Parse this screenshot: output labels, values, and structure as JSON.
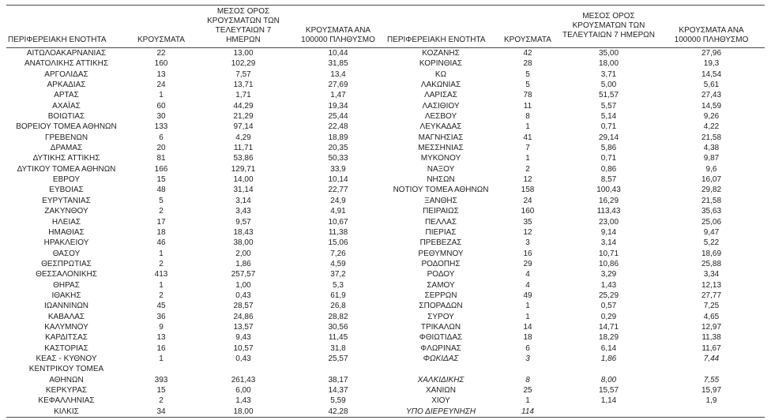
{
  "colors": {
    "background": "#ffffff",
    "text": "#1f1f1f",
    "rule": "#4a4a4a"
  },
  "table": {
    "headers": {
      "region": "ΠΕΡΙΦΕΡΕΙΑΚΗ ΕΝΟΤΗΤΑ",
      "cases": "ΚΡΟΥΣΜΑΤΑ",
      "avg7": "ΜΕΣΟΣ ΟΡΟΣ\nΚΡΟΥΣΜΑΤΩΝ ΤΩΝ\nΤΕΛΕΥΤΑΙΩΝ 7 ΗΜΕΡΩΝ",
      "per100k": "ΚΡΟΥΣΜΑΤΑ ΑΝΑ\n100000 ΠΛΗΘΥΣΜΟ"
    },
    "rows": [
      {
        "left": {
          "region": "ΑΙΤΩΛΟΑΚΑΡΝΑΝΙΑΣ",
          "cases": "22",
          "avg7": "13,00",
          "per100k": "10,44"
        },
        "right": {
          "region": "ΚΟΖΑΝΗΣ",
          "cases": "42",
          "avg7": "35,00",
          "per100k": "27,96"
        }
      },
      {
        "left": {
          "region": "ΑΝΑΤΟΛΙΚΗΣ ΑΤΤΙΚΗΣ",
          "cases": "160",
          "avg7": "102,29",
          "per100k": "31,85"
        },
        "right": {
          "region": "ΚΟΡΙΝΘΙΑΣ",
          "cases": "28",
          "avg7": "18,00",
          "per100k": "19,3"
        }
      },
      {
        "left": {
          "region": "ΑΡΓΟΛΙΔΑΣ",
          "cases": "13",
          "avg7": "7,57",
          "per100k": "13,4"
        },
        "right": {
          "region": "ΚΩ",
          "cases": "5",
          "avg7": "3,71",
          "per100k": "14,54"
        }
      },
      {
        "left": {
          "region": "ΑΡΚΑΔΙΑΣ",
          "cases": "24",
          "avg7": "13,71",
          "per100k": "27,69"
        },
        "right": {
          "region": "ΛΑΚΩΝΙΑΣ",
          "cases": "5",
          "avg7": "5,00",
          "per100k": "5,61"
        }
      },
      {
        "left": {
          "region": "ΑΡΤΑΣ",
          "cases": "1",
          "avg7": "1,71",
          "per100k": "1,47"
        },
        "right": {
          "region": "ΛΑΡΙΣΑΣ",
          "cases": "78",
          "avg7": "51,57",
          "per100k": "27,43"
        }
      },
      {
        "left": {
          "region": "ΑΧΑΪΑΣ",
          "cases": "60",
          "avg7": "44,29",
          "per100k": "19,34"
        },
        "right": {
          "region": "ΛΑΣΙΘΙΟΥ",
          "cases": "11",
          "avg7": "5,57",
          "per100k": "14,59"
        }
      },
      {
        "left": {
          "region": "ΒΟΙΩΤΙΑΣ",
          "cases": "30",
          "avg7": "21,29",
          "per100k": "25,44"
        },
        "right": {
          "region": "ΛΕΣΒΟΥ",
          "cases": "8",
          "avg7": "5,14",
          "per100k": "9,26"
        }
      },
      {
        "left": {
          "region": "ΒΟΡΕΙΟΥ ΤΟΜΕΑ ΑΘΗΝΩΝ",
          "cases": "133",
          "avg7": "97,14",
          "per100k": "22,48"
        },
        "right": {
          "region": "ΛΕΥΚΑΔΑΣ",
          "cases": "1",
          "avg7": "0,71",
          "per100k": "4,22"
        }
      },
      {
        "left": {
          "region": "ΓΡΕΒΕΝΩΝ",
          "cases": "6",
          "avg7": "4,29",
          "per100k": "18,89"
        },
        "right": {
          "region": "ΜΑΓΝΗΣΙΑΣ",
          "cases": "41",
          "avg7": "29,14",
          "per100k": "21,58"
        }
      },
      {
        "left": {
          "region": "ΔΡΑΜΑΣ",
          "cases": "20",
          "avg7": "11,71",
          "per100k": "20,35"
        },
        "right": {
          "region": "ΜΕΣΣΗΝΙΑΣ",
          "cases": "7",
          "avg7": "5,86",
          "per100k": "4,38"
        }
      },
      {
        "left": {
          "region": "ΔΥΤΙΚΗΣ ΑΤΤΙΚΗΣ",
          "cases": "81",
          "avg7": "53,86",
          "per100k": "50,33"
        },
        "right": {
          "region": "ΜΥΚΟΝΟΥ",
          "cases": "1",
          "avg7": "0,71",
          "per100k": "9,87"
        }
      },
      {
        "left": {
          "region": "ΔΥΤΙΚΟΥ ΤΟΜΕΑ ΑΘΗΝΩΝ",
          "cases": "166",
          "avg7": "129,71",
          "per100k": "33,9"
        },
        "right": {
          "region": "ΝΑΞΟΥ",
          "cases": "2",
          "avg7": "0,86",
          "per100k": "9,6"
        }
      },
      {
        "left": {
          "region": "ΕΒΡΟΥ",
          "cases": "15",
          "avg7": "14,00",
          "per100k": "10,14"
        },
        "right": {
          "region": "ΝΗΣΩΝ",
          "cases": "12",
          "avg7": "8,57",
          "per100k": "16,07"
        }
      },
      {
        "left": {
          "region": "ΕΥΒΟΙΑΣ",
          "cases": "48",
          "avg7": "31,14",
          "per100k": "22,77"
        },
        "right": {
          "region": "ΝΟΤΙΟΥ ΤΟΜΕΑ ΑΘΗΝΩΝ",
          "cases": "158",
          "avg7": "100,43",
          "per100k": "29,82"
        }
      },
      {
        "left": {
          "region": "ΕΥΡΥΤΑΝΙΑΣ",
          "cases": "5",
          "avg7": "3,14",
          "per100k": "24,9"
        },
        "right": {
          "region": "ΞΑΝΘΗΣ",
          "cases": "24",
          "avg7": "16,29",
          "per100k": "21,58"
        }
      },
      {
        "left": {
          "region": "ΖΑΚΥΝΘΟΥ",
          "cases": "2",
          "avg7": "3,43",
          "per100k": "4,91"
        },
        "right": {
          "region": "ΠΕΙΡΑΙΩΣ",
          "cases": "160",
          "avg7": "113,43",
          "per100k": "35,63"
        }
      },
      {
        "left": {
          "region": "ΗΛΕΙΑΣ",
          "cases": "17",
          "avg7": "9,57",
          "per100k": "10,67"
        },
        "right": {
          "region": "ΠΕΛΛΑΣ",
          "cases": "35",
          "avg7": "23,00",
          "per100k": "25,06"
        }
      },
      {
        "left": {
          "region": "ΗΜΑΘΙΑΣ",
          "cases": "18",
          "avg7": "18,43",
          "per100k": "11,38"
        },
        "right": {
          "region": "ΠΙΕΡΙΑΣ",
          "cases": "12",
          "avg7": "9,14",
          "per100k": "9,47"
        }
      },
      {
        "left": {
          "region": "ΗΡΑΚΛΕΙΟΥ",
          "cases": "46",
          "avg7": "38,00",
          "per100k": "15,06"
        },
        "right": {
          "region": "ΠΡΕΒΕΖΑΣ",
          "cases": "3",
          "avg7": "3,14",
          "per100k": "5,22"
        }
      },
      {
        "left": {
          "region": "ΘΑΣΟΥ",
          "cases": "1",
          "avg7": "2,00",
          "per100k": "7,26"
        },
        "right": {
          "region": "ΡΕΘΥΜΝΟΥ",
          "cases": "16",
          "avg7": "10,71",
          "per100k": "18,69"
        }
      },
      {
        "left": {
          "region": "ΘΕΣΠΡΩΤΙΑΣ",
          "cases": "2",
          "avg7": "1,86",
          "per100k": "4,59"
        },
        "right": {
          "region": "ΡΟΔΟΠΗΣ",
          "cases": "29",
          "avg7": "10,86",
          "per100k": "25,88"
        }
      },
      {
        "left": {
          "region": "ΘΕΣΣΑΛΟΝΙΚΗΣ",
          "cases": "413",
          "avg7": "257,57",
          "per100k": "37,2"
        },
        "right": {
          "region": "ΡΟΔΟΥ",
          "cases": "4",
          "avg7": "3,29",
          "per100k": "3,34"
        }
      },
      {
        "left": {
          "region": "ΘΗΡΑΣ",
          "cases": "1",
          "avg7": "1,00",
          "per100k": "5,3"
        },
        "right": {
          "region": "ΣΑΜΟΥ",
          "cases": "4",
          "avg7": "1,43",
          "per100k": "12,13"
        }
      },
      {
        "left": {
          "region": "ΙΘΑΚΗΣ",
          "cases": "2",
          "avg7": "0,43",
          "per100k": "61,9"
        },
        "right": {
          "region": "ΣΕΡΡΩΝ",
          "cases": "49",
          "avg7": "25,29",
          "per100k": "27,77"
        }
      },
      {
        "left": {
          "region": "ΙΩΑΝΝΙΝΩΝ",
          "cases": "45",
          "avg7": "28,57",
          "per100k": "26,8"
        },
        "right": {
          "region": "ΣΠΟΡΑΔΩΝ",
          "cases": "1",
          "avg7": "0,57",
          "per100k": "7,25"
        }
      },
      {
        "left": {
          "region": "ΚΑΒΑΛΑΣ",
          "cases": "36",
          "avg7": "24,86",
          "per100k": "28,82"
        },
        "right": {
          "region": "ΣΥΡΟΥ",
          "cases": "1",
          "avg7": "0,29",
          "per100k": "4,65"
        }
      },
      {
        "left": {
          "region": "ΚΑΛΥΜΝΟΥ",
          "cases": "9",
          "avg7": "13,57",
          "per100k": "30,56"
        },
        "right": {
          "region": "ΤΡΙΚΑΛΩΝ",
          "cases": "14",
          "avg7": "14,71",
          "per100k": "12,97"
        }
      },
      {
        "left": {
          "region": "ΚΑΡΔΙΤΣΑΣ",
          "cases": "13",
          "avg7": "9,43",
          "per100k": "11,45"
        },
        "right": {
          "region": "ΦΘΙΩΤΙΔΑΣ",
          "cases": "18",
          "avg7": "18,29",
          "per100k": "11,38"
        }
      },
      {
        "left": {
          "region": "ΚΑΣΤΟΡΙΑΣ",
          "cases": "16",
          "avg7": "10,57",
          "per100k": "31,8"
        },
        "right": {
          "region": "ΦΛΩΡΙΝΑΣ",
          "cases": "6",
          "avg7": "6,14",
          "per100k": "11,67"
        }
      },
      {
        "left": {
          "region": "ΚΕΑΣ - ΚΥΘΝΟΥ",
          "cases": "1",
          "avg7": "0,43",
          "per100k": "25,57"
        },
        "right": {
          "region": "ΦΩΚΙΔΑΣ",
          "cases": "3",
          "avg7": "1,86",
          "per100k": "7,44",
          "italic": true
        }
      },
      {
        "left": {
          "region": "ΚΕΝΤΡΙΚΟΥ ΤΟΜΕΑ",
          "cases": "",
          "avg7": "",
          "per100k": ""
        },
        "right": {
          "region": "",
          "cases": "",
          "avg7": "",
          "per100k": ""
        }
      },
      {
        "left": {
          "region": "ΑΘΗΝΩΝ",
          "cases": "393",
          "avg7": "261,43",
          "per100k": "38,17"
        },
        "right": {
          "region": "ΧΑΛΚΙΔΙΚΗΣ",
          "cases": "8",
          "avg7": "8,00",
          "per100k": "7,55",
          "italic": true
        }
      },
      {
        "left": {
          "region": "ΚΕΡΚΥΡΑΣ",
          "cases": "15",
          "avg7": "6,00",
          "per100k": "14,37"
        },
        "right": {
          "region": "ΧΑΝΙΩΝ",
          "cases": "25",
          "avg7": "15,57",
          "per100k": "15,97"
        }
      },
      {
        "left": {
          "region": "ΚΕΦΑΛΛΗΝΙΑΣ",
          "cases": "2",
          "avg7": "1,43",
          "per100k": "5,59"
        },
        "right": {
          "region": "ΧΙΟΥ",
          "cases": "1",
          "avg7": "1,14",
          "per100k": "1,9"
        }
      },
      {
        "left": {
          "region": "ΚΙΛΚΙΣ",
          "cases": "34",
          "avg7": "18,00",
          "per100k": "42,28"
        },
        "right": {
          "region": "ΥΠΟ ΔΙΕΡΕΥΝΗΣΗ",
          "cases": "114",
          "avg7": "",
          "per100k": "",
          "italic": true
        }
      }
    ]
  }
}
